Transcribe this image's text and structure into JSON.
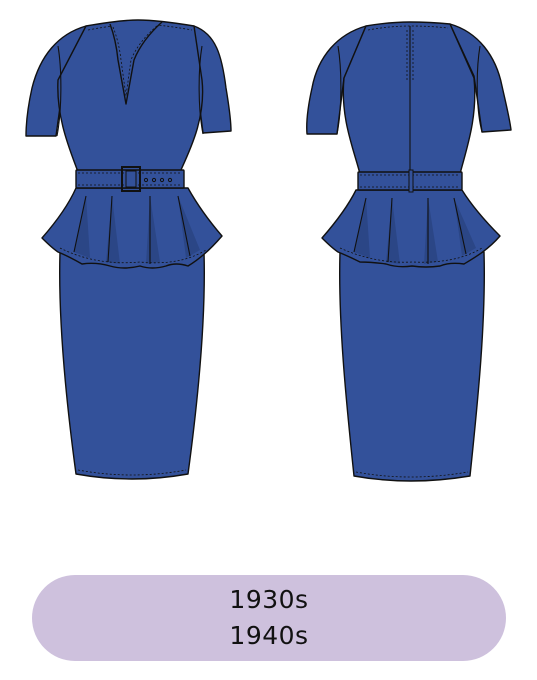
{
  "illustration": {
    "subject": "peplum-dress-front-and-back",
    "colors": {
      "fabric": "#33519a",
      "fabric_shadow": "#2b4686",
      "outline": "#111111",
      "label_background": "#cec1dd"
    }
  },
  "era_label": {
    "line1": "1930s",
    "line2": "1940s"
  }
}
